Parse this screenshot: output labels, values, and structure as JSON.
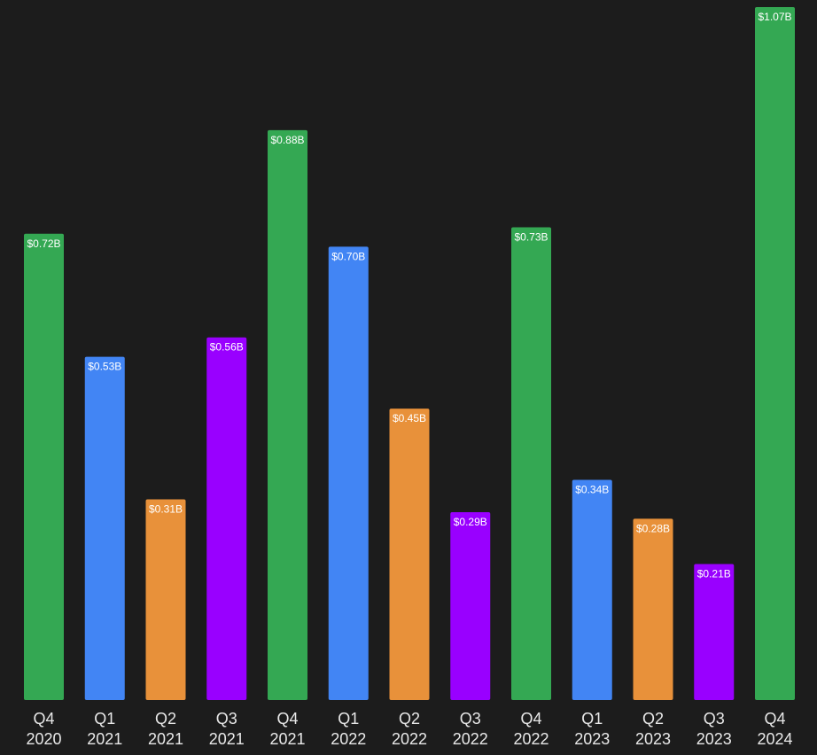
{
  "chart_data": {
    "type": "bar",
    "title": "",
    "xlabel": "",
    "ylabel": "",
    "ylim": [
      0,
      1.07
    ],
    "grid": false,
    "legend": "none",
    "categories": [
      [
        "Q4",
        "2020"
      ],
      [
        "Q1",
        "2021"
      ],
      [
        "Q2",
        "2021"
      ],
      [
        "Q3",
        "2021"
      ],
      [
        "Q4",
        "2021"
      ],
      [
        "Q1",
        "2022"
      ],
      [
        "Q2",
        "2022"
      ],
      [
        "Q3",
        "2022"
      ],
      [
        "Q4",
        "2022"
      ],
      [
        "Q1",
        "2023"
      ],
      [
        "Q2",
        "2023"
      ],
      [
        "Q3",
        "2023"
      ],
      [
        "Q4",
        "2024"
      ]
    ],
    "values": [
      0.72,
      0.53,
      0.31,
      0.56,
      0.88,
      0.7,
      0.45,
      0.29,
      0.73,
      0.34,
      0.28,
      0.21,
      1.07
    ],
    "value_labels": [
      "$0.72B",
      "$0.53B",
      "$0.31B",
      "$0.56B",
      "$0.88B",
      "$0.70B",
      "$0.45B",
      "$0.29B",
      "$0.73B",
      "$0.34B",
      "$0.28B",
      "$0.21B",
      "$1.07B"
    ],
    "bar_colors": [
      "#34a853",
      "#4285f4",
      "#e8913a",
      "#9900ff",
      "#34a853",
      "#4285f4",
      "#e8913a",
      "#9900ff",
      "#34a853",
      "#4285f4",
      "#e8913a",
      "#9900ff",
      "#34a853"
    ]
  },
  "colors": {
    "background": "#1c1c1c",
    "tick_text": "#e8e8e8",
    "label_text": "#ffffff"
  }
}
